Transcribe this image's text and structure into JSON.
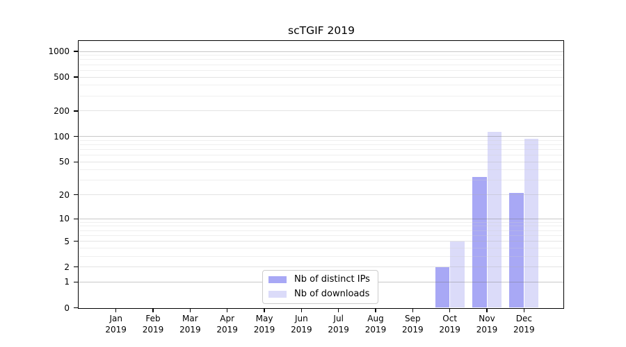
{
  "chart_data": {
    "type": "bar",
    "title": "scTGIF 2019",
    "categories": [
      "Jan",
      "Feb",
      "Mar",
      "Apr",
      "May",
      "Jun",
      "Jul",
      "Aug",
      "Sep",
      "Oct",
      "Nov",
      "Dec"
    ],
    "category_year": "2019",
    "series": [
      {
        "name": "Nb of distinct IPs",
        "color": "#a8a8f5",
        "values": [
          0,
          0,
          0,
          0,
          0,
          0,
          0,
          0,
          0,
          2,
          33,
          21
        ]
      },
      {
        "name": "Nb of downloads",
        "color": "#dbdbf9",
        "values": [
          0,
          0,
          0,
          0,
          0,
          0,
          0,
          0,
          0,
          5,
          114,
          94
        ]
      }
    ],
    "yscale": "log1p",
    "y_ticks": [
      0,
      1,
      2,
      5,
      10,
      20,
      50,
      100,
      200,
      500,
      1000
    ],
    "ylim": [
      0,
      1320
    ],
    "grid": true,
    "legend_position": "lower-center",
    "xlabel": "",
    "ylabel": "",
    "grid_colors": {
      "power_of_ten": "rgba(110,110,110,0.38)",
      "labeled": "rgba(175,175,175,0.35)",
      "minor": "rgba(205,205,205,0.32)"
    },
    "frame_color": "#000000",
    "legend_border_color": "#cccccc"
  }
}
